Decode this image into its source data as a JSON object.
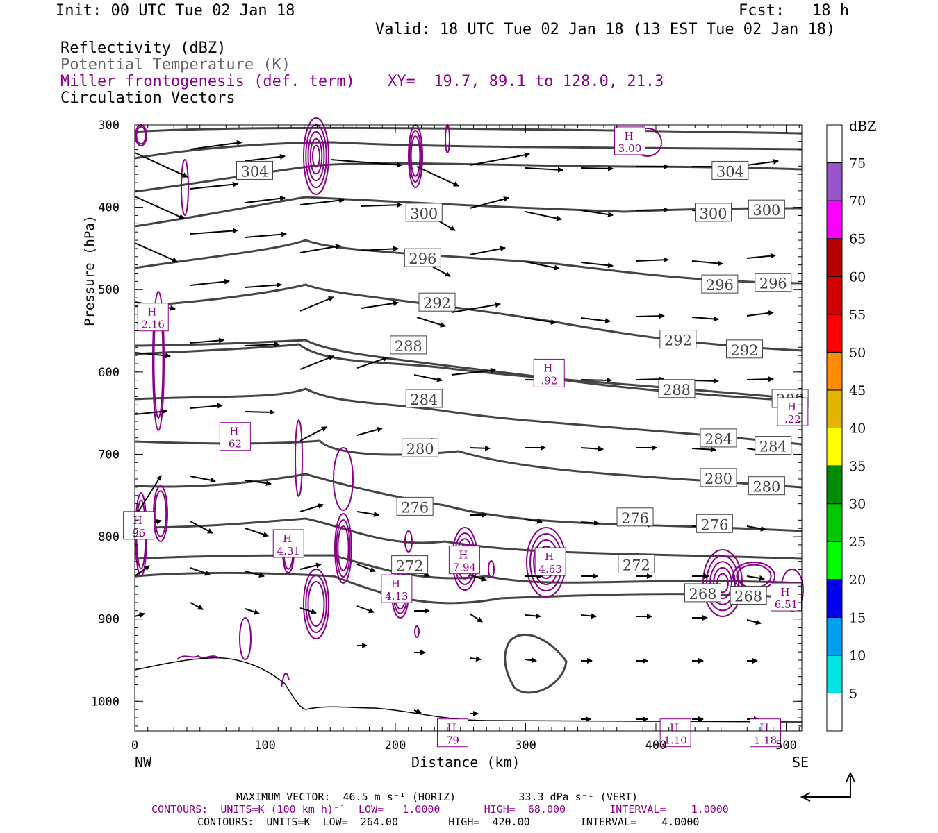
{
  "header": {
    "init": "Init: 00 UTC Tue 02 Jan 18",
    "fcst": "Fcst:   18 h",
    "valid": "Valid: 18 UTC Tue 02 Jan 18 (13 EST Tue 02 Jan 18)"
  },
  "fields": {
    "reflectivity": "Reflectivity (dBZ)",
    "theta": "Potential Temperature (K)",
    "frontogenesis": "Miller frontogenesis (def. term)",
    "xy": "XY=  19.7, 89.1 to 128.0, 21.3",
    "vectors": "Circulation Vectors"
  },
  "axes": {
    "ylabel": "Pressure (hPa)",
    "xlabel": "Distance (km)",
    "left_end": "NW",
    "right_end": "SE",
    "yticks": [
      "300",
      "400",
      "500",
      "600",
      "700",
      "800",
      "900",
      "1000"
    ],
    "xticks": [
      "0",
      "100",
      "200",
      "300",
      "400",
      "500"
    ]
  },
  "colorbar": {
    "unit": "dBZ",
    "labels": [
      "5",
      "10",
      "15",
      "20",
      "25",
      "30",
      "35",
      "40",
      "45",
      "50",
      "55",
      "60",
      "65",
      "70",
      "75"
    ],
    "colors": [
      "#ffffff",
      "#00e6e6",
      "#00a0f0",
      "#0000f0",
      "#00ff00",
      "#00c800",
      "#008c00",
      "#ffff00",
      "#e6b400",
      "#ff8c00",
      "#ff0000",
      "#d20000",
      "#b40000",
      "#ff00ff",
      "#9955c9"
    ]
  },
  "footer": {
    "maxvec": "MAXIMUM VECTOR:  46.5 m s⁻¹ (HORIZ)          33.3 dPa s⁻¹ (VERT)",
    "contours1": "CONTOURS:  UNITS=K (100 km h)⁻¹  LOW=   1.0000       HIGH=  68.000       INTERVAL=    1.0000",
    "contours2": "CONTOURS:  UNITS=K  LOW=  264.00        HIGH=  420.00        INTERVAL=    4.0000"
  },
  "chart_data": {
    "type": "cross-section",
    "xlim": [
      0,
      512
    ],
    "ylim": [
      1036,
      300
    ],
    "theta_labels": [
      {
        "x": 92,
        "p": 356,
        "text": "304"
      },
      {
        "x": 457,
        "p": 356,
        "text": "304"
      },
      {
        "x": 222,
        "p": 407,
        "text": "300"
      },
      {
        "x": 444,
        "p": 407,
        "text": "300"
      },
      {
        "x": 485,
        "p": 403,
        "text": "300"
      },
      {
        "x": 221,
        "p": 462,
        "text": "296"
      },
      {
        "x": 449,
        "p": 494,
        "text": "296"
      },
      {
        "x": 490,
        "p": 492,
        "text": "296"
      },
      {
        "x": 232,
        "p": 516,
        "text": "292"
      },
      {
        "x": 417,
        "p": 561,
        "text": "292"
      },
      {
        "x": 468,
        "p": 573,
        "text": "292"
      },
      {
        "x": 210,
        "p": 568,
        "text": "288"
      },
      {
        "x": 416,
        "p": 621,
        "text": "288"
      },
      {
        "x": 503,
        "p": 633,
        "text": "288"
      },
      {
        "x": 222,
        "p": 633,
        "text": "284"
      },
      {
        "x": 448,
        "p": 681,
        "text": "284"
      },
      {
        "x": 490,
        "p": 690,
        "text": "284"
      },
      {
        "x": 219,
        "p": 693,
        "text": "280"
      },
      {
        "x": 448,
        "p": 729,
        "text": "280"
      },
      {
        "x": 485,
        "p": 739,
        "text": "280"
      },
      {
        "x": 215,
        "p": 764,
        "text": "276"
      },
      {
        "x": 384,
        "p": 777,
        "text": "276"
      },
      {
        "x": 445,
        "p": 785,
        "text": "276"
      },
      {
        "x": 211,
        "p": 835,
        "text": "272"
      },
      {
        "x": 385,
        "p": 834,
        "text": "272"
      },
      {
        "x": 436,
        "p": 869,
        "text": "268"
      },
      {
        "x": 471,
        "p": 872,
        "text": "268"
      }
    ],
    "front_maxima": [
      {
        "x": 14,
        "p": 535,
        "text": "2.16"
      },
      {
        "x": 380,
        "p": 321,
        "text": "3.00"
      },
      {
        "x": 318,
        "p": 603,
        "text": ".92"
      },
      {
        "x": 505,
        "p": 650,
        "text": ".22"
      },
      {
        "x": 77,
        "p": 680,
        "text": "62"
      },
      {
        "x": 3,
        "p": 788,
        "text": "96"
      },
      {
        "x": 118,
        "p": 810,
        "text": "4.31"
      },
      {
        "x": 253,
        "p": 830,
        "text": "7.94"
      },
      {
        "x": 319,
        "p": 832,
        "text": "4.63"
      },
      {
        "x": 201,
        "p": 865,
        "text": "4.13"
      },
      {
        "x": 500,
        "p": 875,
        "text": "6.51"
      },
      {
        "x": 244,
        "p": 1040,
        "text": "79"
      },
      {
        "x": 415,
        "p": 1040,
        "text": "1.10"
      },
      {
        "x": 484,
        "p": 1040,
        "text": "1.18"
      }
    ]
  }
}
